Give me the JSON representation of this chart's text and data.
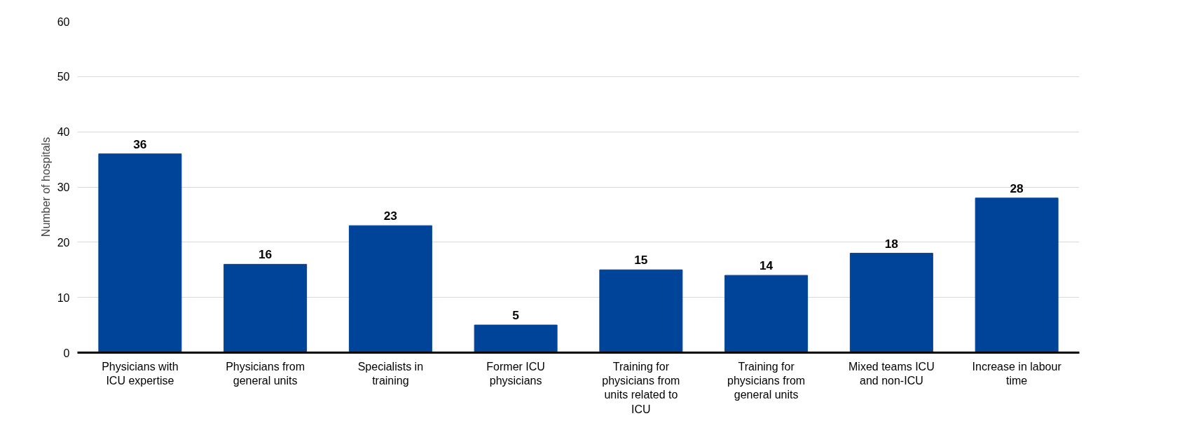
{
  "chart_data": {
    "type": "bar",
    "ylabel": "Number of hospitals",
    "categories": [
      "Physicians with ICU expertise",
      "Physicians from general units",
      "Specialists in training",
      "Former ICU physicians",
      "Training for physicians from units related to ICU",
      "Training for physicians from general units",
      "Mixed teams ICU and non-ICU",
      "Increase in labour time"
    ],
    "values": [
      36,
      16,
      23,
      5,
      15,
      14,
      18,
      28
    ],
    "color": "#00449a",
    "ylim": [
      0,
      60
    ],
    "yticks": [
      0,
      10,
      20,
      30,
      40,
      50,
      60
    ],
    "grid": "y",
    "data_labels": true
  }
}
